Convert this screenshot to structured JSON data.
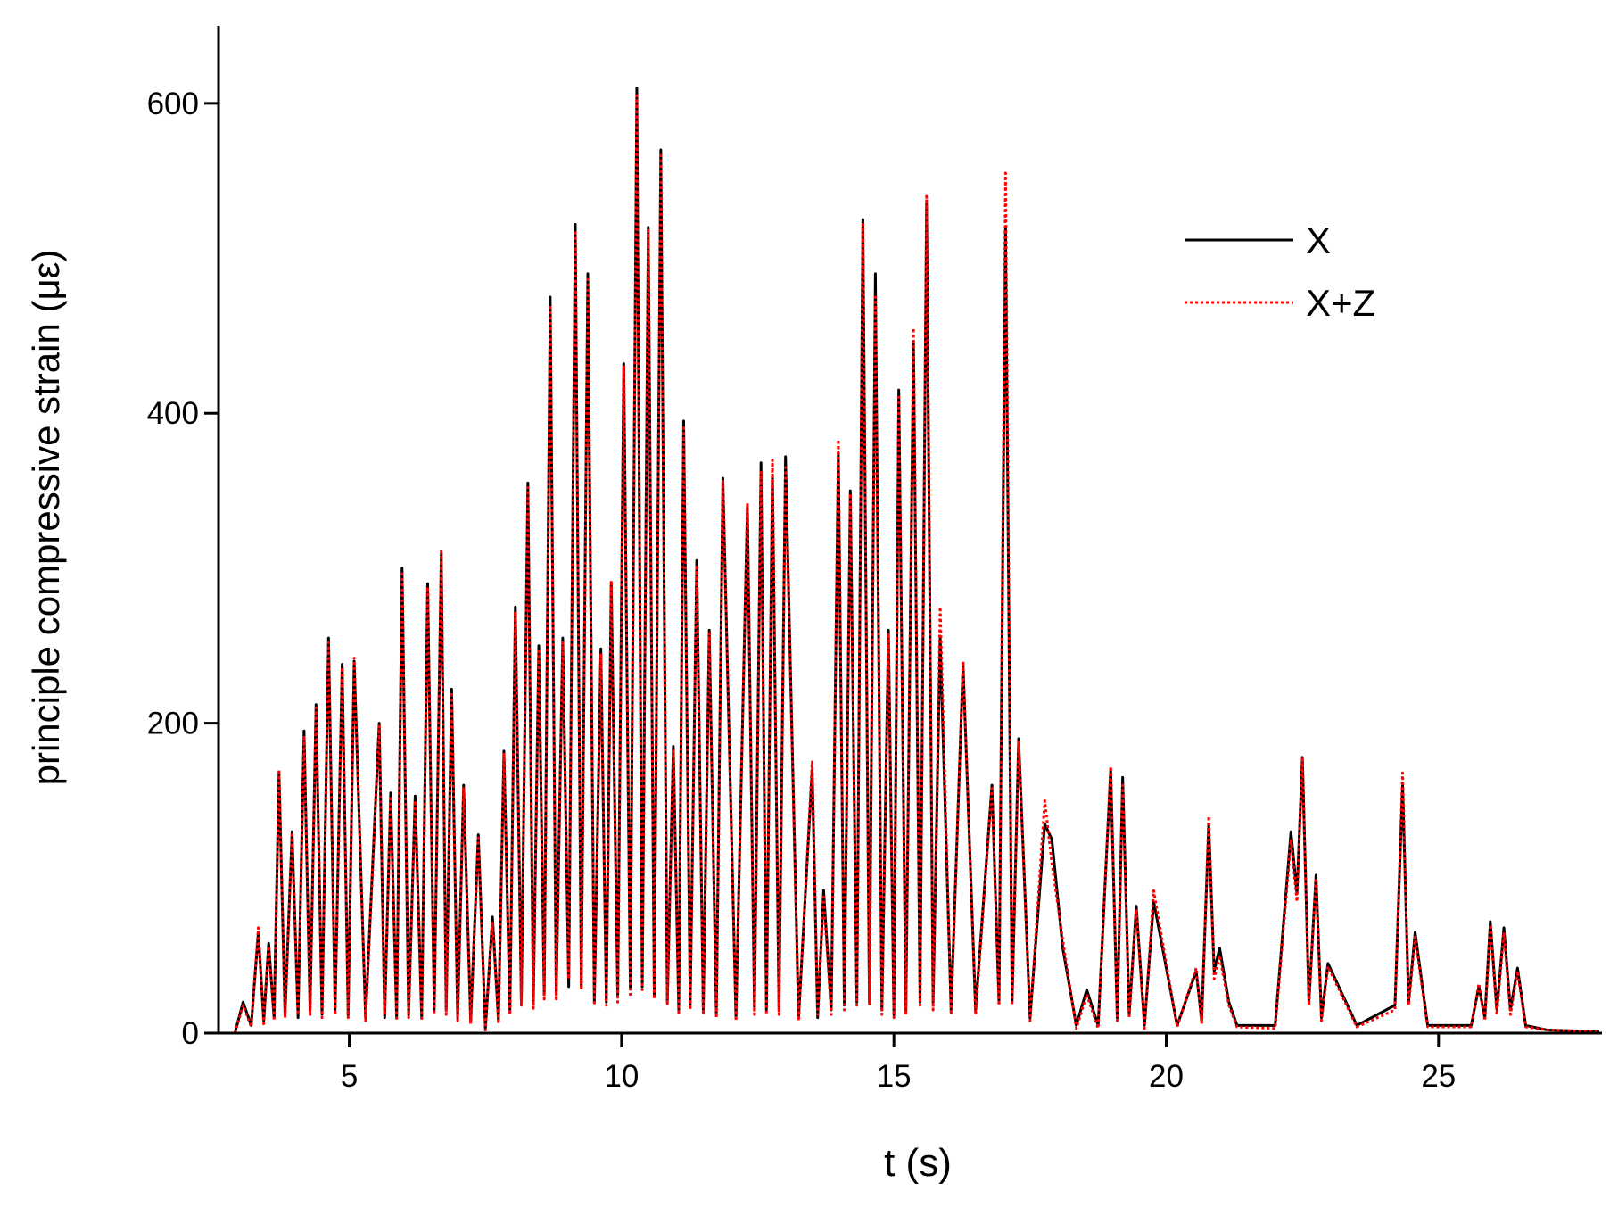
{
  "chart_data": {
    "type": "line",
    "xlabel": "t (s)",
    "ylabel": "principle compressive strain (με)",
    "xlim": [
      2.6,
      28
    ],
    "ylim": [
      0,
      650
    ],
    "xticks": [
      5,
      10,
      15,
      20,
      25
    ],
    "yticks": [
      0,
      200,
      400,
      600
    ],
    "x": [
      2.9,
      3.05,
      3.2,
      3.33,
      3.43,
      3.52,
      3.62,
      3.71,
      3.82,
      3.95,
      4.06,
      4.17,
      4.28,
      4.39,
      4.5,
      4.62,
      4.74,
      4.87,
      4.98,
      5.09,
      5.3,
      5.55,
      5.65,
      5.76,
      5.87,
      5.97,
      6.09,
      6.21,
      6.33,
      6.44,
      6.56,
      6.69,
      6.78,
      6.88,
      6.99,
      7.1,
      7.23,
      7.37,
      7.5,
      7.63,
      7.74,
      7.84,
      7.95,
      8.05,
      8.16,
      8.28,
      8.38,
      8.48,
      8.58,
      8.69,
      8.8,
      8.92,
      9.03,
      9.15,
      9.26,
      9.38,
      9.5,
      9.62,
      9.72,
      9.81,
      9.93,
      10.04,
      10.16,
      10.28,
      10.38,
      10.49,
      10.6,
      10.72,
      10.84,
      10.95,
      11.05,
      11.14,
      11.26,
      11.38,
      11.5,
      11.61,
      11.74,
      11.86,
      12.1,
      12.31,
      12.44,
      12.56,
      12.66,
      12.77,
      12.89,
      13.01,
      13.25,
      13.5,
      13.6,
      13.71,
      13.85,
      13.98,
      14.09,
      14.2,
      14.32,
      14.43,
      14.55,
      14.66,
      14.78,
      14.9,
      15.0,
      15.09,
      15.22,
      15.36,
      15.48,
      15.6,
      15.72,
      15.85,
      16.05,
      16.27,
      16.5,
      16.8,
      16.93,
      17.05,
      17.17,
      17.29,
      17.5,
      17.77,
      17.9,
      18.1,
      18.35,
      18.54,
      18.75,
      18.98,
      19.1,
      19.2,
      19.32,
      19.45,
      19.6,
      19.77,
      20.2,
      20.55,
      20.65,
      20.78,
      20.88,
      20.98,
      21.15,
      21.3,
      22.0,
      22.29,
      22.4,
      22.5,
      22.62,
      22.75,
      22.85,
      22.97,
      23.5,
      24.2,
      24.34,
      24.45,
      24.57,
      24.8,
      25.6,
      25.74,
      25.85,
      25.95,
      26.07,
      26.2,
      26.32,
      26.45,
      26.6,
      27.0,
      27.95
    ],
    "series": [
      {
        "name": "X",
        "color": "#000000",
        "dash": false,
        "values": [
          0,
          20,
          5,
          65,
          8,
          58,
          10,
          168,
          12,
          130,
          10,
          195,
          15,
          212,
          12,
          255,
          15,
          238,
          12,
          240,
          10,
          200,
          10,
          155,
          10,
          300,
          12,
          153,
          10,
          290,
          15,
          310,
          15,
          222,
          10,
          160,
          8,
          128,
          3,
          75,
          8,
          182,
          15,
          275,
          20,
          355,
          20,
          250,
          25,
          475,
          25,
          255,
          30,
          522,
          30,
          490,
          20,
          248,
          20,
          290,
          25,
          432,
          30,
          610,
          30,
          520,
          25,
          570,
          20,
          185,
          15,
          395,
          18,
          305,
          15,
          260,
          12,
          358,
          10,
          340,
          15,
          368,
          15,
          360,
          15,
          372,
          10,
          170,
          10,
          92,
          15,
          375,
          18,
          350,
          20,
          525,
          20,
          490,
          15,
          260,
          12,
          415,
          15,
          445,
          20,
          535,
          20,
          255,
          15,
          238,
          15,
          160,
          20,
          520,
          20,
          190,
          10,
          135,
          125,
          55,
          5,
          28,
          5,
          170,
          10,
          165,
          12,
          82,
          5,
          85,
          5,
          40,
          8,
          135,
          40,
          55,
          20,
          5,
          5,
          130,
          90,
          178,
          20,
          102,
          10,
          45,
          5,
          18,
          160,
          20,
          65,
          5,
          5,
          30,
          10,
          72,
          15,
          68,
          15,
          42,
          5,
          2,
          1
        ]
      },
      {
        "name": "X+Z",
        "color": "#ff0000",
        "dash": true,
        "values": [
          0,
          18,
          4,
          68,
          6,
          56,
          8,
          170,
          10,
          128,
          12,
          192,
          12,
          210,
          10,
          252,
          12,
          236,
          10,
          242,
          8,
          198,
          12,
          153,
          8,
          298,
          10,
          150,
          8,
          288,
          12,
          312,
          12,
          220,
          8,
          158,
          6,
          126,
          2,
          72,
          6,
          180,
          12,
          272,
          18,
          352,
          16,
          248,
          22,
          470,
          22,
          252,
          35,
          518,
          28,
          488,
          18,
          245,
          18,
          292,
          20,
          430,
          25,
          605,
          28,
          518,
          22,
          568,
          18,
          182,
          12,
          392,
          15,
          302,
          12,
          258,
          10,
          356,
          8,
          342,
          12,
          362,
          12,
          370,
          12,
          365,
          8,
          175,
          12,
          88,
          12,
          383,
          15,
          348,
          18,
          522,
          18,
          475,
          12,
          258,
          10,
          412,
          12,
          455,
          18,
          540,
          15,
          275,
          12,
          240,
          12,
          158,
          18,
          555,
          18,
          188,
          8,
          150,
          110,
          60,
          3,
          25,
          3,
          172,
          8,
          160,
          10,
          80,
          3,
          92,
          4,
          42,
          6,
          140,
          35,
          50,
          18,
          4,
          3,
          125,
          85,
          178,
          18,
          100,
          8,
          43,
          4,
          15,
          168,
          18,
          62,
          4,
          4,
          32,
          8,
          70,
          12,
          65,
          12,
          40,
          4,
          2,
          1
        ]
      }
    ]
  }
}
